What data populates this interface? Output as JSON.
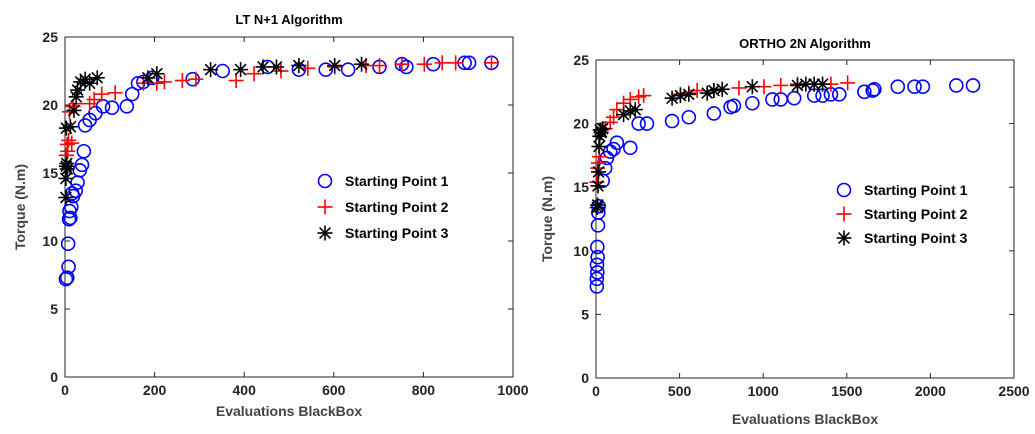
{
  "chart_data": [
    {
      "type": "scatter",
      "title": "LT N+1 Algorithm",
      "xlabel": "Evaluations BlackBox",
      "ylabel": "Torque (N.m)",
      "xlim": [
        0,
        1000
      ],
      "ylim": [
        0,
        25
      ],
      "xticks": [
        "0",
        "200",
        "400",
        "600",
        "800",
        "1000"
      ],
      "yticks": [
        "0",
        "5",
        "10",
        "15",
        "20",
        "25"
      ],
      "grid": false,
      "legend_position": "right",
      "series": [
        {
          "name": "Starting Point 1",
          "marker": "circle",
          "color": "#0000ff",
          "points": [
            [
              2,
              7.2
            ],
            [
              5,
              7.3
            ],
            [
              8,
              8.1
            ],
            [
              7,
              9.8
            ],
            [
              9,
              11.6
            ],
            [
              12,
              11.7
            ],
            [
              10,
              12.2
            ],
            [
              14,
              12.5
            ],
            [
              18,
              13.3
            ],
            [
              16,
              13.5
            ],
            [
              24,
              13.7
            ],
            [
              28,
              14.3
            ],
            [
              33,
              15.2
            ],
            [
              38,
              15.6
            ],
            [
              42,
              16.6
            ],
            [
              45,
              18.5
            ],
            [
              55,
              18.9
            ],
            [
              68,
              19.4
            ],
            [
              85,
              19.9
            ],
            [
              105,
              19.8
            ],
            [
              138,
              19.9
            ],
            [
              150,
              20.8
            ],
            [
              163,
              21.6
            ],
            [
              175,
              21.7
            ],
            [
              195,
              22.0
            ],
            [
              285,
              21.9
            ],
            [
              352,
              22.5
            ],
            [
              452,
              22.8
            ],
            [
              522,
              22.6
            ],
            [
              582,
              22.6
            ],
            [
              632,
              22.6
            ],
            [
              702,
              22.8
            ],
            [
              752,
              23.0
            ],
            [
              762,
              22.8
            ],
            [
              822,
              23.0
            ],
            [
              892,
              23.1
            ],
            [
              902,
              23.1
            ],
            [
              952,
              23.1
            ]
          ]
        },
        {
          "name": "Starting Point 2",
          "marker": "plus",
          "color": "#ff0000",
          "points": [
            [
              3,
              16.3
            ],
            [
              6,
              16.6
            ],
            [
              5,
              17.1
            ],
            [
              8,
              17.4
            ],
            [
              15,
              17.2
            ],
            [
              10,
              19.5
            ],
            [
              18,
              19.9
            ],
            [
              25,
              20.1
            ],
            [
              55,
              20.1
            ],
            [
              65,
              20.4
            ],
            [
              82,
              20.8
            ],
            [
              112,
              20.9
            ],
            [
              175,
              21.6
            ],
            [
              205,
              21.6
            ],
            [
              222,
              21.7
            ],
            [
              262,
              21.8
            ],
            [
              292,
              21.9
            ],
            [
              382,
              21.8
            ],
            [
              422,
              22.3
            ],
            [
              482,
              22.5
            ],
            [
              542,
              22.7
            ],
            [
              602,
              22.8
            ],
            [
              672,
              22.9
            ],
            [
              702,
              22.9
            ],
            [
              752,
              23.0
            ],
            [
              802,
              23.0
            ],
            [
              842,
              23.1
            ],
            [
              872,
              23.1
            ],
            [
              952,
              23.1
            ]
          ]
        },
        {
          "name": "Starting Point 3",
          "marker": "asterisk",
          "color": "#000000",
          "points": [
            [
              2,
              13.2
            ],
            [
              2,
              14.6
            ],
            [
              3,
              15.5
            ],
            [
              4,
              15.7
            ],
            [
              5,
              15.3
            ],
            [
              3,
              18.3
            ],
            [
              12,
              18.4
            ],
            [
              20,
              19.6
            ],
            [
              25,
              20.6
            ],
            [
              28,
              21.1
            ],
            [
              35,
              21.7
            ],
            [
              45,
              21.9
            ],
            [
              55,
              21.6
            ],
            [
              72,
              22.0
            ],
            [
              185,
              22.0
            ],
            [
              205,
              22.3
            ],
            [
              325,
              22.6
            ],
            [
              392,
              22.6
            ],
            [
              442,
              22.8
            ],
            [
              472,
              22.8
            ],
            [
              522,
              22.9
            ],
            [
              602,
              22.9
            ],
            [
              662,
              23.0
            ]
          ]
        }
      ]
    },
    {
      "type": "scatter",
      "title": "ORTHO 2N Algorithm",
      "xlabel": "Evaluations BlackBox",
      "ylabel": "Torque (N.m)",
      "xlim": [
        0,
        2500
      ],
      "ylim": [
        0,
        25
      ],
      "xticks": [
        "0",
        "500",
        "1000",
        "1500",
        "2000",
        "2500"
      ],
      "yticks": [
        "0",
        "5",
        "10",
        "15",
        "20",
        "25"
      ],
      "grid": false,
      "legend_position": "right",
      "series": [
        {
          "name": "Starting Point 1",
          "marker": "circle",
          "color": "#0000ff",
          "points": [
            [
              5,
              7.2
            ],
            [
              5,
              7.8
            ],
            [
              8,
              8.3
            ],
            [
              6,
              8.9
            ],
            [
              10,
              9.5
            ],
            [
              8,
              10.3
            ],
            [
              12,
              12.0
            ],
            [
              14,
              13.0
            ],
            [
              16,
              13.5
            ],
            [
              40,
              15.5
            ],
            [
              55,
              16.5
            ],
            [
              65,
              17.3
            ],
            [
              85,
              17.8
            ],
            [
              105,
              18.0
            ],
            [
              125,
              18.5
            ],
            [
              205,
              18.1
            ],
            [
              255,
              20.0
            ],
            [
              305,
              20.0
            ],
            [
              455,
              20.2
            ],
            [
              555,
              20.5
            ],
            [
              705,
              20.8
            ],
            [
              805,
              21.3
            ],
            [
              825,
              21.4
            ],
            [
              935,
              21.6
            ],
            [
              1055,
              21.9
            ],
            [
              1105,
              21.9
            ],
            [
              1185,
              22.0
            ],
            [
              1305,
              22.2
            ],
            [
              1355,
              22.2
            ],
            [
              1405,
              22.3
            ],
            [
              1455,
              22.3
            ],
            [
              1605,
              22.5
            ],
            [
              1655,
              22.6
            ],
            [
              1665,
              22.7
            ],
            [
              1805,
              22.9
            ],
            [
              1905,
              22.9
            ],
            [
              1955,
              22.9
            ],
            [
              2155,
              23.0
            ],
            [
              2255,
              23.0
            ]
          ]
        },
        {
          "name": "Starting Point 2",
          "marker": "plus",
          "color": "#ff0000",
          "points": [
            [
              5,
              15.4
            ],
            [
              10,
              16.5
            ],
            [
              15,
              16.9
            ],
            [
              20,
              17.4
            ],
            [
              32,
              19.5
            ],
            [
              55,
              19.6
            ],
            [
              85,
              20.1
            ],
            [
              105,
              20.5
            ],
            [
              125,
              21.1
            ],
            [
              165,
              21.6
            ],
            [
              205,
              21.9
            ],
            [
              255,
              22.1
            ],
            [
              285,
              22.2
            ],
            [
              505,
              22.3
            ],
            [
              555,
              22.4
            ],
            [
              605,
              22.6
            ],
            [
              705,
              22.6
            ],
            [
              755,
              22.7
            ],
            [
              855,
              22.8
            ],
            [
              1005,
              22.9
            ],
            [
              1105,
              23.0
            ],
            [
              1205,
              23.1
            ],
            [
              1305,
              23.1
            ],
            [
              1405,
              23.1
            ],
            [
              1505,
              23.2
            ]
          ]
        },
        {
          "name": "Starting Point 3",
          "marker": "asterisk",
          "color": "#000000",
          "points": [
            [
              8,
              13.4
            ],
            [
              10,
              13.6
            ],
            [
              12,
              15.1
            ],
            [
              15,
              16.2
            ],
            [
              18,
              18.2
            ],
            [
              22,
              19.0
            ],
            [
              25,
              19.5
            ],
            [
              30,
              19.3
            ],
            [
              40,
              19.6
            ],
            [
              165,
              20.7
            ],
            [
              205,
              21.0
            ],
            [
              235,
              21.1
            ],
            [
              455,
              22.0
            ],
            [
              505,
              22.2
            ],
            [
              555,
              22.3
            ],
            [
              665,
              22.4
            ],
            [
              705,
              22.6
            ],
            [
              755,
              22.7
            ],
            [
              935,
              22.9
            ],
            [
              1205,
              23.0
            ],
            [
              1255,
              23.1
            ],
            [
              1305,
              23.1
            ],
            [
              1355,
              23.1
            ]
          ]
        }
      ]
    }
  ]
}
